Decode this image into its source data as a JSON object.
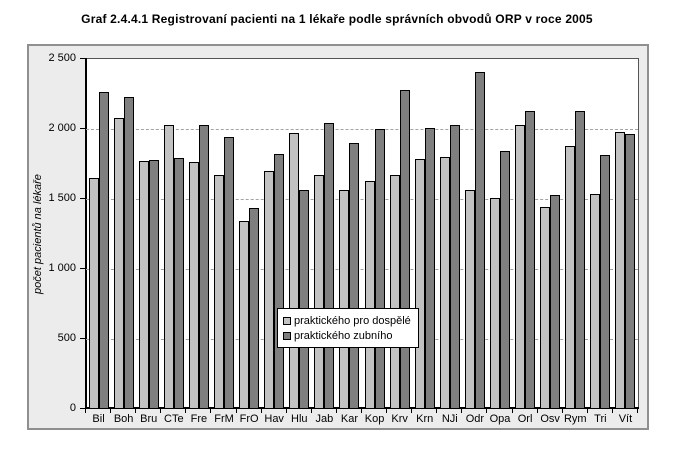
{
  "title": "Graf 2.4.4.1 Registrovaní pacienti na 1 lékaře podle správních obvodů ORP v roce 2005",
  "chart_data": {
    "type": "bar",
    "title": "Graf 2.4.4.1 Registrovaní pacienti na 1 lékaře podle správních obvodů ORP v roce 2005",
    "xlabel": "",
    "ylabel": "počet pacientů na lékaře",
    "ylim": [
      0,
      2500
    ],
    "ytick_interval": 500,
    "ytick_labels": [
      "0",
      "500",
      "1 000",
      "1 500",
      "2 000",
      "2 500"
    ],
    "grid": "horizontal dashed at 500,1000,1500,2000",
    "legend_position": "center of plot, boxed",
    "categories": [
      "Bil",
      "Boh",
      "Bru",
      "CTe",
      "Fre",
      "FrM",
      "FrO",
      "Hav",
      "Hlu",
      "Jab",
      "Kar",
      "Kop",
      "Krv",
      "Krn",
      "NJi",
      "Odr",
      "Opa",
      "Orl",
      "Osv",
      "Rym",
      "Tri",
      "Vít"
    ],
    "series": [
      {
        "name": "praktického pro dospělé",
        "color": "#c2c2c2",
        "values": [
          1650,
          2080,
          1770,
          2030,
          1765,
          1670,
          1340,
          1700,
          1970,
          1670,
          1565,
          1630,
          1670,
          1785,
          1800,
          1565,
          1505,
          2030,
          1445,
          1875,
          1535,
          1980
        ]
      },
      {
        "name": "praktického zubního",
        "color": "#7f7f7f",
        "values": [
          2265,
          2230,
          1780,
          1790,
          2025,
          1940,
          1435,
          1820,
          1565,
          2045,
          1900,
          2000,
          2280,
          2010,
          2030,
          2410,
          1845,
          2130,
          1525,
          2125,
          1815,
          1965
        ]
      }
    ]
  },
  "colors": {
    "chart_background": "#ececec",
    "plot_background": "#ffffff",
    "frame_border": "#8f8f8f",
    "gridline": "#a3a3a3",
    "axis": "#000000",
    "bar_adults": "#c2c2c2",
    "bar_dental": "#7f7f7f"
  }
}
